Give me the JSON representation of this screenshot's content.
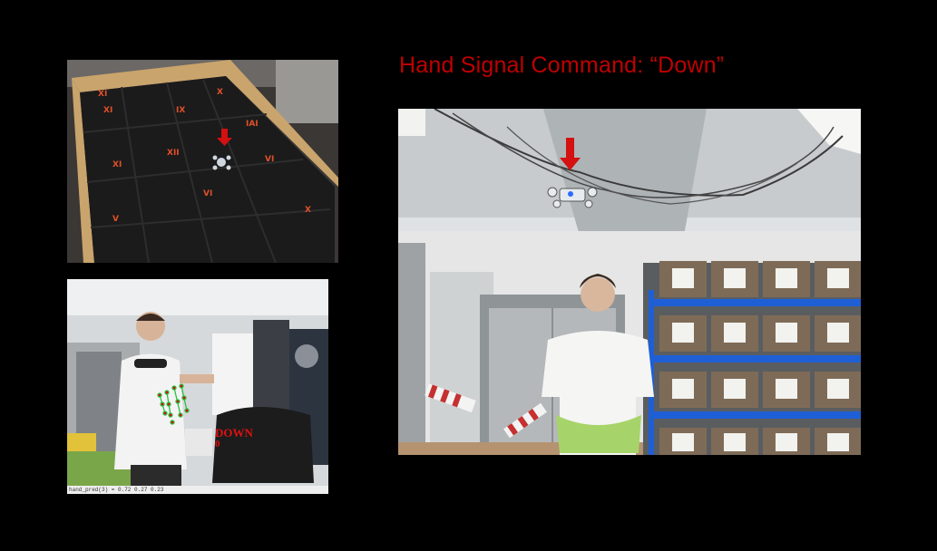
{
  "header": {
    "title": "Hand Signal Command: “Down”"
  },
  "hand_cam": {
    "gesture_label": "DOWN",
    "gesture_index": "0",
    "status_text": "hand_pred(3) = 0.72 0.27 0.23"
  },
  "colors": {
    "title": "#c00000",
    "arrow": "#d41010",
    "shelf": "#1f5fd6",
    "floor_marks": "#e0502a"
  },
  "icons": {
    "drone_marker": "down-arrow-icon"
  }
}
